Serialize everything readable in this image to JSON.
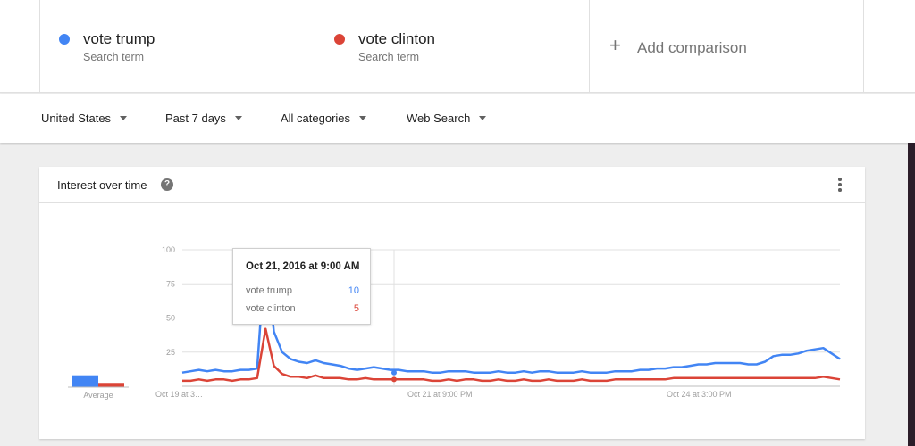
{
  "terms": [
    {
      "name": "vote trump",
      "sub": "Search term",
      "color": "#4285f4"
    },
    {
      "name": "vote clinton",
      "sub": "Search term",
      "color": "#db4437"
    }
  ],
  "add_comparison": {
    "icon": "plus-icon",
    "label": "Add comparison"
  },
  "filters": {
    "region": "United States",
    "time": "Past 7 days",
    "category": "All categories",
    "search_type": "Web Search"
  },
  "card": {
    "title": "Interest over time",
    "help_icon": "help-icon",
    "more_icon": "more-vert-icon"
  },
  "tooltip": {
    "date": "Oct 21, 2016 at 9:00 AM",
    "rows": [
      {
        "label": "vote trump",
        "value": "10",
        "color": "#4285f4"
      },
      {
        "label": "vote clinton",
        "value": "5",
        "color": "#db4437"
      }
    ]
  },
  "chart_data": [
    {
      "type": "bar",
      "categories": [
        "Average"
      ],
      "series": [
        {
          "name": "vote trump",
          "color": "#4285f4",
          "values": [
            14
          ]
        },
        {
          "name": "vote clinton",
          "color": "#db4437",
          "values": [
            5
          ]
        }
      ],
      "ylim": [
        0,
        100
      ]
    },
    {
      "type": "line",
      "x_tick_labels": [
        "Oct 19 at 3…",
        "Oct 21 at 9:00 PM",
        "Oct 24 at 3:00 PM"
      ],
      "y_ticks": [
        25,
        50,
        75,
        100
      ],
      "ylim": [
        0,
        100
      ],
      "grid": true,
      "series": [
        {
          "name": "vote trump",
          "color": "#4285f4",
          "values": [
            10,
            11,
            12,
            11,
            12,
            11,
            11,
            12,
            12,
            13,
            100,
            40,
            25,
            20,
            18,
            17,
            19,
            17,
            16,
            15,
            13,
            12,
            13,
            14,
            13,
            12,
            12,
            11,
            11,
            11,
            10,
            10,
            11,
            11,
            11,
            10,
            10,
            10,
            11,
            10,
            10,
            11,
            10,
            11,
            11,
            10,
            10,
            10,
            11,
            10,
            10,
            10,
            11,
            11,
            11,
            12,
            12,
            13,
            13,
            14,
            14,
            15,
            16,
            16,
            17,
            17,
            17,
            17,
            16,
            16,
            18,
            22,
            23,
            23,
            24,
            26,
            27,
            28,
            24,
            20
          ]
        },
        {
          "name": "vote clinton",
          "color": "#db4437",
          "values": [
            4,
            4,
            5,
            4,
            5,
            5,
            4,
            5,
            5,
            6,
            42,
            15,
            9,
            7,
            7,
            6,
            8,
            6,
            6,
            6,
            5,
            5,
            6,
            5,
            5,
            5,
            5,
            5,
            5,
            5,
            4,
            4,
            5,
            4,
            5,
            5,
            4,
            4,
            5,
            4,
            4,
            5,
            4,
            4,
            5,
            4,
            4,
            4,
            5,
            4,
            4,
            4,
            5,
            5,
            5,
            5,
            5,
            5,
            5,
            6,
            6,
            6,
            6,
            6,
            6,
            6,
            6,
            6,
            6,
            6,
            6,
            6,
            6,
            6,
            6,
            6,
            6,
            7,
            6,
            5
          ]
        }
      ]
    }
  ]
}
